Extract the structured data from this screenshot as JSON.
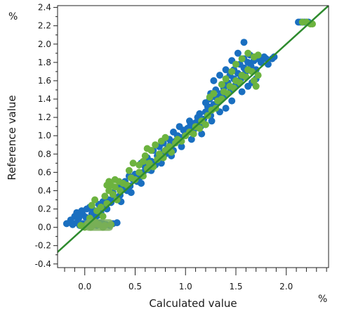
{
  "chart_data": {
    "type": "scatter",
    "title": "",
    "xlabel": "Calculated value",
    "ylabel": "Reference value",
    "x_unit": "%",
    "y_unit": "%",
    "xlim": [
      -0.27,
      2.42
    ],
    "ylim": [
      -0.44,
      2.42
    ],
    "x_ticks": [
      0.0,
      0.5,
      1.0,
      1.5,
      2.0
    ],
    "x_tick_labels": [
      "0.0",
      "0.5",
      "1.0",
      "1.5",
      "2.0"
    ],
    "y_ticks": [
      -0.4,
      -0.2,
      0.0,
      0.2,
      0.4,
      0.6,
      0.8,
      1.0,
      1.2,
      1.4,
      1.6,
      1.8,
      2.0,
      2.2,
      2.4
    ],
    "y_tick_labels": [
      "-0.4",
      "-0.2",
      "0.0",
      "0.2",
      "0.4",
      "0.6",
      "0.8",
      "1.0",
      "1.2",
      "1.4",
      "1.6",
      "1.8",
      "2.0",
      "2.2",
      "2.4"
    ],
    "grid": false,
    "legend": "none",
    "reference_line": {
      "slope": 1,
      "intercept": 0,
      "color": "#2e8b2e"
    },
    "series": [
      {
        "color": "#1a6fc0",
        "points": [
          [
            -0.18,
            0.04
          ],
          [
            -0.12,
            0.03
          ],
          [
            -0.08,
            0.05
          ],
          [
            -0.05,
            0.02
          ],
          [
            -0.02,
            0.04
          ],
          [
            0.0,
            0.02
          ],
          [
            0.03,
            0.05
          ],
          [
            0.06,
            0.03
          ],
          [
            0.09,
            0.04
          ],
          [
            0.12,
            0.02
          ],
          [
            0.15,
            0.05
          ],
          [
            0.18,
            0.04
          ],
          [
            0.21,
            0.03
          ],
          [
            0.25,
            0.02
          ],
          [
            0.28,
            0.04
          ],
          [
            0.32,
            0.05
          ],
          [
            -0.14,
            0.08
          ],
          [
            -0.06,
            0.1
          ],
          [
            -0.1,
            0.12
          ],
          [
            -0.02,
            0.14
          ],
          [
            0.01,
            0.11
          ],
          [
            0.04,
            0.08
          ],
          [
            0.07,
            0.15
          ],
          [
            0.1,
            0.1
          ],
          [
            -0.03,
            0.18
          ],
          [
            0.02,
            0.2
          ],
          [
            0.08,
            0.19
          ],
          [
            0.13,
            0.13
          ],
          [
            0.16,
            0.16
          ],
          [
            0.2,
            0.22
          ],
          [
            0.14,
            0.25
          ],
          [
            0.18,
            0.28
          ],
          [
            0.24,
            0.3
          ],
          [
            0.22,
            0.2
          ],
          [
            0.26,
            0.27
          ],
          [
            0.3,
            0.33
          ],
          [
            0.33,
            0.3
          ],
          [
            0.28,
            0.38
          ],
          [
            0.35,
            0.35
          ],
          [
            0.38,
            0.42
          ],
          [
            0.34,
            0.44
          ],
          [
            0.42,
            0.4
          ],
          [
            0.45,
            0.45
          ],
          [
            0.4,
            0.5
          ],
          [
            0.48,
            0.52
          ],
          [
            0.44,
            0.56
          ],
          [
            0.52,
            0.5
          ],
          [
            0.5,
            0.58
          ],
          [
            0.55,
            0.55
          ],
          [
            0.58,
            0.6
          ],
          [
            0.6,
            0.66
          ],
          [
            0.56,
            0.7
          ],
          [
            0.63,
            0.63
          ],
          [
            0.66,
            0.72
          ],
          [
            0.62,
            0.76
          ],
          [
            0.7,
            0.68
          ],
          [
            0.72,
            0.78
          ],
          [
            0.68,
            0.84
          ],
          [
            0.75,
            0.74
          ],
          [
            0.78,
            0.82
          ],
          [
            0.74,
            0.88
          ],
          [
            0.8,
            0.8
          ],
          [
            0.82,
            0.86
          ],
          [
            0.78,
            0.92
          ],
          [
            0.85,
            0.9
          ],
          [
            0.88,
            0.84
          ],
          [
            0.84,
            0.96
          ],
          [
            0.9,
            0.94
          ],
          [
            0.92,
            1.0
          ],
          [
            0.88,
            1.04
          ],
          [
            0.95,
            0.98
          ],
          [
            0.98,
            1.06
          ],
          [
            0.94,
            1.1
          ],
          [
            1.0,
            1.02
          ],
          [
            1.02,
            1.08
          ],
          [
            1.05,
            1.12
          ],
          [
            1.08,
            1.06
          ],
          [
            1.04,
            1.16
          ],
          [
            1.1,
            1.14
          ],
          [
            1.12,
            1.2
          ],
          [
            1.15,
            1.1
          ],
          [
            1.18,
            1.18
          ],
          [
            1.14,
            1.24
          ],
          [
            1.2,
            1.26
          ],
          [
            1.22,
            1.32
          ],
          [
            1.25,
            1.22
          ],
          [
            1.28,
            1.34
          ],
          [
            1.24,
            1.4
          ],
          [
            1.3,
            1.42
          ],
          [
            1.32,
            1.36
          ],
          [
            1.35,
            1.46
          ],
          [
            1.3,
            1.5
          ],
          [
            1.38,
            1.52
          ],
          [
            1.4,
            1.44
          ],
          [
            1.36,
            1.56
          ],
          [
            1.42,
            1.58
          ],
          [
            1.45,
            1.5
          ],
          [
            1.48,
            1.62
          ],
          [
            1.44,
            1.66
          ],
          [
            1.5,
            1.56
          ],
          [
            1.52,
            1.68
          ],
          [
            1.48,
            1.72
          ],
          [
            1.55,
            1.62
          ],
          [
            1.58,
            1.74
          ],
          [
            1.54,
            1.78
          ],
          [
            1.6,
            1.7
          ],
          [
            1.62,
            1.8
          ],
          [
            1.58,
            1.84
          ],
          [
            1.65,
            1.76
          ],
          [
            1.68,
            1.82
          ],
          [
            1.64,
            1.88
          ],
          [
            1.7,
            1.72
          ],
          [
            1.72,
            1.84
          ],
          [
            1.75,
            1.8
          ],
          [
            1.78,
            1.86
          ],
          [
            1.8,
            1.84
          ],
          [
            1.82,
            1.78
          ],
          [
            1.86,
            1.84
          ],
          [
            1.88,
            1.86
          ],
          [
            1.7,
            1.62
          ],
          [
            1.66,
            1.58
          ],
          [
            1.62,
            1.54
          ],
          [
            1.56,
            1.48
          ],
          [
            1.46,
            1.38
          ],
          [
            1.4,
            1.3
          ],
          [
            1.34,
            1.26
          ],
          [
            1.26,
            1.16
          ],
          [
            1.16,
            1.02
          ],
          [
            1.06,
            0.96
          ],
          [
            0.96,
            0.88
          ],
          [
            0.86,
            0.78
          ],
          [
            0.76,
            0.7
          ],
          [
            0.66,
            0.62
          ],
          [
            0.56,
            0.48
          ],
          [
            0.46,
            0.38
          ],
          [
            0.36,
            0.28
          ],
          [
            1.28,
            1.6
          ],
          [
            1.34,
            1.66
          ],
          [
            1.4,
            1.72
          ],
          [
            1.46,
            1.82
          ],
          [
            1.52,
            1.9
          ],
          [
            1.58,
            2.02
          ],
          [
            1.25,
            1.46
          ],
          [
            1.2,
            1.36
          ],
          [
            2.12,
            2.24
          ],
          [
            2.14,
            2.24
          ],
          [
            2.16,
            2.24
          ],
          [
            2.18,
            2.24
          ],
          [
            2.2,
            2.24
          ],
          [
            2.22,
            2.24
          ],
          [
            0.05,
            0.22
          ],
          [
            -0.08,
            0.16
          ]
        ]
      },
      {
        "color": "#6cb33f",
        "points": [
          [
            -0.04,
            0.02
          ],
          [
            0.02,
            0.03
          ],
          [
            0.08,
            0.02
          ],
          [
            0.14,
            0.03
          ],
          [
            0.2,
            0.02
          ],
          [
            0.26,
            0.03
          ],
          [
            0.1,
            0.06
          ],
          [
            0.05,
            0.1
          ],
          [
            0.12,
            0.18
          ],
          [
            0.18,
            0.12
          ],
          [
            0.07,
            0.24
          ],
          [
            0.1,
            0.3
          ],
          [
            0.16,
            0.22
          ],
          [
            0.22,
            0.26
          ],
          [
            0.2,
            0.34
          ],
          [
            0.24,
            0.4
          ],
          [
            0.28,
            0.36
          ],
          [
            0.32,
            0.3
          ],
          [
            0.26,
            0.46
          ],
          [
            0.3,
            0.44
          ],
          [
            0.35,
            0.4
          ],
          [
            0.38,
            0.48
          ],
          [
            0.42,
            0.46
          ],
          [
            0.46,
            0.54
          ],
          [
            0.5,
            0.52
          ],
          [
            0.54,
            0.6
          ],
          [
            0.58,
            0.56
          ],
          [
            0.62,
            0.64
          ],
          [
            0.64,
            0.7
          ],
          [
            0.68,
            0.66
          ],
          [
            0.72,
            0.74
          ],
          [
            0.74,
            0.8
          ],
          [
            0.78,
            0.76
          ],
          [
            0.8,
            0.84
          ],
          [
            0.84,
            0.88
          ],
          [
            0.86,
            0.82
          ],
          [
            0.9,
            0.92
          ],
          [
            0.92,
            0.96
          ],
          [
            0.96,
            0.94
          ],
          [
            1.0,
            1.0
          ],
          [
            1.04,
            1.04
          ],
          [
            1.08,
            1.02
          ],
          [
            1.1,
            1.1
          ],
          [
            1.14,
            1.08
          ],
          [
            1.16,
            1.16
          ],
          [
            1.2,
            1.12
          ],
          [
            1.22,
            1.22
          ],
          [
            1.26,
            1.28
          ],
          [
            1.3,
            1.3
          ],
          [
            1.32,
            1.38
          ],
          [
            1.36,
            1.4
          ],
          [
            1.38,
            1.48
          ],
          [
            1.42,
            1.46
          ],
          [
            1.44,
            1.54
          ],
          [
            1.48,
            1.52
          ],
          [
            1.5,
            1.6
          ],
          [
            1.54,
            1.58
          ],
          [
            1.56,
            1.66
          ],
          [
            1.6,
            1.64
          ],
          [
            1.62,
            1.72
          ],
          [
            1.66,
            1.7
          ],
          [
            1.68,
            1.6
          ],
          [
            1.72,
            1.66
          ],
          [
            1.7,
            1.54
          ],
          [
            1.36,
            1.56
          ],
          [
            1.4,
            1.62
          ],
          [
            1.46,
            1.7
          ],
          [
            1.5,
            1.78
          ],
          [
            1.56,
            1.84
          ],
          [
            1.62,
            1.9
          ],
          [
            1.68,
            1.86
          ],
          [
            1.72,
            1.88
          ],
          [
            0.6,
            0.78
          ],
          [
            0.66,
            0.84
          ],
          [
            0.7,
            0.9
          ],
          [
            0.62,
            0.86
          ],
          [
            0.58,
            0.72
          ],
          [
            0.76,
            0.94
          ],
          [
            0.8,
            0.98
          ],
          [
            0.54,
            0.68
          ],
          [
            0.34,
            0.5
          ],
          [
            0.22,
            0.46
          ],
          [
            0.24,
            0.5
          ],
          [
            0.3,
            0.52
          ],
          [
            0.44,
            0.62
          ],
          [
            0.48,
            0.7
          ],
          [
            1.24,
            1.42
          ],
          [
            1.28,
            1.46
          ],
          [
            2.16,
            2.24
          ],
          [
            2.2,
            2.24
          ],
          [
            2.24,
            2.22
          ],
          [
            2.26,
            2.22
          ],
          [
            0.0,
            0.0
          ],
          [
            -0.02,
            0.01
          ],
          [
            0.06,
            0.0
          ],
          [
            0.18,
            0.0
          ]
        ]
      }
    ],
    "dense_band": {
      "x": [
        0.0,
        0.28
      ],
      "y": [
        0.0,
        0.05
      ],
      "color": "#7aae5a"
    }
  }
}
